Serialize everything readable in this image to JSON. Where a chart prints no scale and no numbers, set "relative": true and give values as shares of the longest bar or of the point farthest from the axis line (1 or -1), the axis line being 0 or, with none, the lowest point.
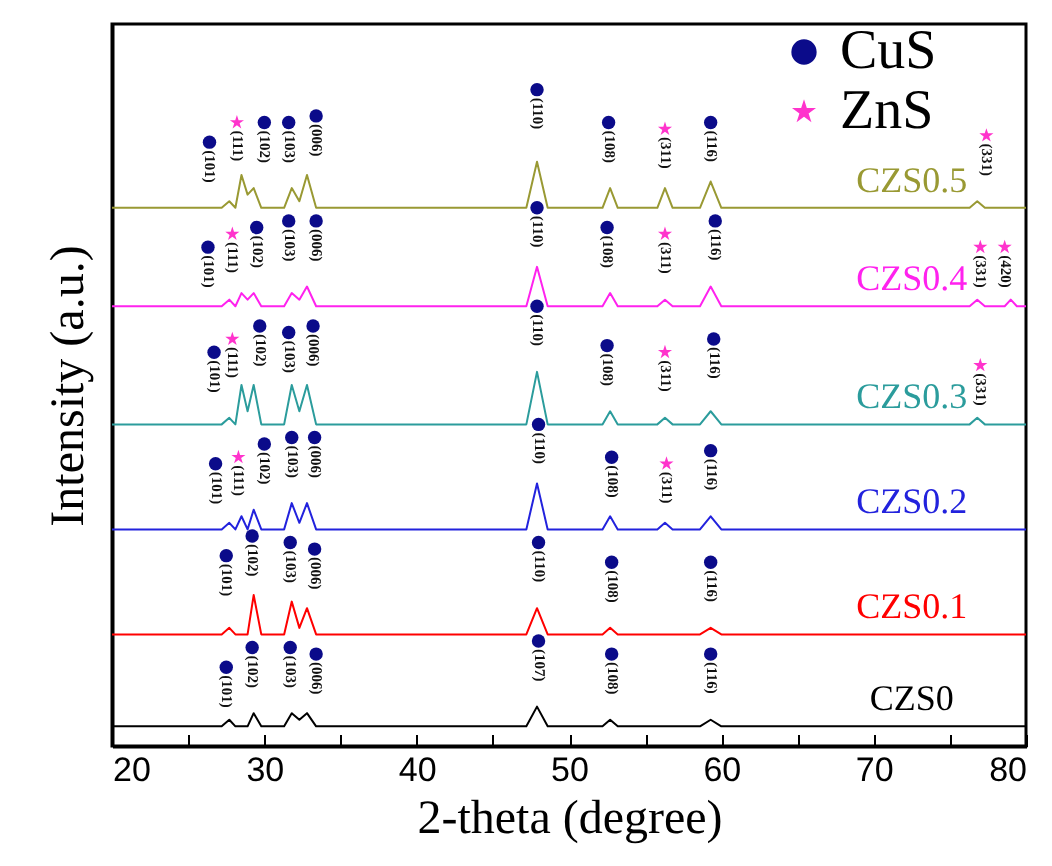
{
  "chart_data": {
    "type": "line",
    "xlabel": "2-theta (degree)",
    "ylabel": "Intensity (a.u.)",
    "relative": true,
    "xlim": [
      20,
      80
    ],
    "xticks": [
      20,
      {
        "value": 25,
        "label": null
      },
      30,
      {
        "value": 35,
        "label": null
      },
      40,
      {
        "value": 45,
        "label": null
      },
      50,
      {
        "value": 55,
        "label": null
      },
      60,
      {
        "value": 65,
        "label": null
      },
      70,
      {
        "value": 75,
        "label": null
      },
      80
    ],
    "grid": false,
    "legend": "top right",
    "x": [
      20,
      27.2,
      27.7,
      28.1,
      28.5,
      28.9,
      29.3,
      29.8,
      31.3,
      31.8,
      32.3,
      32.8,
      33.4,
      47.2,
      47.9,
      48.6,
      52.2,
      52.7,
      53.2,
      55.8,
      56.3,
      56.8,
      58.6,
      59.3,
      60.0,
      76.3,
      76.8,
      77.3,
      78.6,
      79.0,
      79.4,
      80
    ],
    "series": [
      {
        "name": "CZS0",
        "color": "#000000",
        "values": [
          0.03,
          0.03,
          0.04,
          0.03,
          0.03,
          0.03,
          0.05,
          0.03,
          0.03,
          0.05,
          0.04,
          0.05,
          0.03,
          0.03,
          0.06,
          0.03,
          0.03,
          0.04,
          0.03,
          0.03,
          0.03,
          0.03,
          0.03,
          0.04,
          0.03,
          0.03,
          0.03,
          0.03,
          0.03,
          0.03,
          0.03,
          0.03
        ]
      },
      {
        "name": "CZS0.1",
        "color": "#ff0000",
        "values": [
          0.17,
          0.17,
          0.18,
          0.17,
          0.17,
          0.17,
          0.23,
          0.17,
          0.17,
          0.22,
          0.18,
          0.21,
          0.17,
          0.17,
          0.21,
          0.17,
          0.17,
          0.18,
          0.17,
          0.17,
          0.17,
          0.17,
          0.17,
          0.18,
          0.17,
          0.17,
          0.17,
          0.17,
          0.17,
          0.17,
          0.17,
          0.17
        ]
      },
      {
        "name": "CZS0.2",
        "color": "#2222dd",
        "values": [
          0.33,
          0.33,
          0.34,
          0.33,
          0.35,
          0.33,
          0.36,
          0.33,
          0.33,
          0.37,
          0.34,
          0.37,
          0.33,
          0.33,
          0.4,
          0.33,
          0.33,
          0.35,
          0.33,
          0.33,
          0.34,
          0.33,
          0.33,
          0.35,
          0.33,
          0.33,
          0.33,
          0.33,
          0.33,
          0.33,
          0.33,
          0.33
        ]
      },
      {
        "name": "CZS0.3",
        "color": "#2b9c9c",
        "values": [
          0.49,
          0.49,
          0.5,
          0.49,
          0.55,
          0.51,
          0.55,
          0.49,
          0.49,
          0.55,
          0.51,
          0.55,
          0.49,
          0.49,
          0.57,
          0.49,
          0.49,
          0.51,
          0.49,
          0.49,
          0.5,
          0.49,
          0.49,
          0.51,
          0.49,
          0.49,
          0.5,
          0.49,
          0.49,
          0.49,
          0.49,
          0.49
        ]
      },
      {
        "name": "CZS0.4",
        "color": "#ff22ee",
        "values": [
          0.67,
          0.67,
          0.68,
          0.67,
          0.69,
          0.68,
          0.69,
          0.67,
          0.67,
          0.69,
          0.68,
          0.7,
          0.67,
          0.67,
          0.73,
          0.67,
          0.67,
          0.69,
          0.67,
          0.67,
          0.68,
          0.67,
          0.67,
          0.7,
          0.67,
          0.67,
          0.68,
          0.67,
          0.67,
          0.68,
          0.67,
          0.67
        ]
      },
      {
        "name": "CZS0.5",
        "color": "#999933",
        "values": [
          0.82,
          0.82,
          0.83,
          0.82,
          0.87,
          0.84,
          0.85,
          0.82,
          0.82,
          0.85,
          0.83,
          0.87,
          0.82,
          0.82,
          0.89,
          0.82,
          0.82,
          0.85,
          0.82,
          0.82,
          0.85,
          0.82,
          0.82,
          0.86,
          0.82,
          0.82,
          0.83,
          0.82,
          0.82,
          0.82,
          0.82,
          0.82
        ]
      },
      {
        "name": "CuS",
        "type": "scatter",
        "marker": "circle",
        "color": "#0b0b8a",
        "x": [
          26.4,
          30.0,
          31.6,
          33.4,
          47.9,
          52.6,
          59.3,
          26.3,
          29.5,
          31.6,
          33.4,
          47.9,
          52.5,
          59.6,
          26.7,
          29.7,
          31.6,
          33.2,
          47.9,
          52.5,
          59.5,
          26.8,
          30.0,
          31.8,
          33.3,
          48.0,
          52.8,
          59.3,
          27.5,
          29.2,
          31.7,
          33.3,
          48.0,
          52.8,
          59.3,
          27.5,
          29.2,
          31.7,
          33.4,
          48.0,
          52.8,
          59.3
        ],
        "values": [
          0.92,
          0.95,
          0.95,
          0.96,
          1.0,
          0.95,
          0.95,
          0.76,
          0.79,
          0.8,
          0.8,
          0.82,
          0.79,
          0.8,
          0.6,
          0.64,
          0.63,
          0.64,
          0.67,
          0.61,
          0.62,
          0.43,
          0.46,
          0.47,
          0.47,
          0.49,
          0.44,
          0.45,
          0.29,
          0.32,
          0.31,
          0.3,
          0.31,
          0.28,
          0.28,
          0.12,
          0.15,
          0.15,
          0.14,
          0.16,
          0.14,
          0.14
        ]
      },
      {
        "name": "ZnS",
        "type": "scatter",
        "marker": "star",
        "color": "#ff33cc",
        "x": [
          28.2,
          56.3,
          77.4,
          27.9,
          56.3,
          77.0,
          78.6,
          27.9,
          56.3,
          77.0,
          28.3,
          56.4
        ],
        "values": [
          0.95,
          0.94,
          0.93,
          0.78,
          0.78,
          0.76,
          0.76,
          0.62,
          0.6,
          0.58,
          0.44,
          0.43
        ]
      }
    ],
    "annotations": [
      {
        "text": "(101)",
        "x": 26.4,
        "y": 0.92
      },
      {
        "text": "(111)",
        "x": 28.2,
        "y": 0.95
      },
      {
        "text": "(102)",
        "x": 30.0,
        "y": 0.95
      },
      {
        "text": "(103)",
        "x": 31.6,
        "y": 0.95
      },
      {
        "text": "(006)",
        "x": 33.4,
        "y": 0.96
      },
      {
        "text": "(110)",
        "x": 47.9,
        "y": 1.0
      },
      {
        "text": "(108)",
        "x": 52.6,
        "y": 0.95
      },
      {
        "text": "(311)",
        "x": 56.3,
        "y": 0.94
      },
      {
        "text": "(116)",
        "x": 59.3,
        "y": 0.95
      },
      {
        "text": "(331)",
        "x": 77.4,
        "y": 0.93
      },
      {
        "text": "(101)",
        "x": 26.3,
        "y": 0.76
      },
      {
        "text": "(111)",
        "x": 27.9,
        "y": 0.78
      },
      {
        "text": "(102)",
        "x": 29.5,
        "y": 0.79
      },
      {
        "text": "(103)",
        "x": 31.6,
        "y": 0.8
      },
      {
        "text": "(006)",
        "x": 33.4,
        "y": 0.8
      },
      {
        "text": "(110)",
        "x": 47.9,
        "y": 0.82
      },
      {
        "text": "(108)",
        "x": 52.5,
        "y": 0.79
      },
      {
        "text": "(311)",
        "x": 56.3,
        "y": 0.78
      },
      {
        "text": "(116)",
        "x": 59.6,
        "y": 0.8
      },
      {
        "text": "(331)",
        "x": 77.0,
        "y": 0.76
      },
      {
        "text": "(420)",
        "x": 78.6,
        "y": 0.76
      },
      {
        "text": "(101)",
        "x": 26.7,
        "y": 0.6
      },
      {
        "text": "(111)",
        "x": 27.9,
        "y": 0.62
      },
      {
        "text": "(102)",
        "x": 29.7,
        "y": 0.64
      },
      {
        "text": "(103)",
        "x": 31.6,
        "y": 0.63
      },
      {
        "text": "(006)",
        "x": 33.2,
        "y": 0.64
      },
      {
        "text": "(110)",
        "x": 47.9,
        "y": 0.67
      },
      {
        "text": "(108)",
        "x": 52.5,
        "y": 0.61
      },
      {
        "text": "(311)",
        "x": 56.3,
        "y": 0.6
      },
      {
        "text": "(116)",
        "x": 59.5,
        "y": 0.62
      },
      {
        "text": "(331)",
        "x": 77.0,
        "y": 0.58
      },
      {
        "text": "(101)",
        "x": 26.8,
        "y": 0.43
      },
      {
        "text": "(111)",
        "x": 28.3,
        "y": 0.44
      },
      {
        "text": "(102)",
        "x": 30.0,
        "y": 0.46
      },
      {
        "text": "(103)",
        "x": 31.8,
        "y": 0.47
      },
      {
        "text": "(006)",
        "x": 33.3,
        "y": 0.47
      },
      {
        "text": "(110)",
        "x": 48.0,
        "y": 0.49
      },
      {
        "text": "(108)",
        "x": 52.8,
        "y": 0.44
      },
      {
        "text": "(311)",
        "x": 56.4,
        "y": 0.43
      },
      {
        "text": "(116)",
        "x": 59.3,
        "y": 0.45
      },
      {
        "text": "(101)",
        "x": 27.5,
        "y": 0.29
      },
      {
        "text": "(102)",
        "x": 29.2,
        "y": 0.32
      },
      {
        "text": "(103)",
        "x": 31.7,
        "y": 0.31
      },
      {
        "text": "(006)",
        "x": 33.3,
        "y": 0.3
      },
      {
        "text": "(110)",
        "x": 48.0,
        "y": 0.31
      },
      {
        "text": "(108)",
        "x": 52.8,
        "y": 0.28
      },
      {
        "text": "(116)",
        "x": 59.3,
        "y": 0.28
      },
      {
        "text": "(101)",
        "x": 27.5,
        "y": 0.12
      },
      {
        "text": "(102)",
        "x": 29.2,
        "y": 0.15
      },
      {
        "text": "(103)",
        "x": 31.7,
        "y": 0.15
      },
      {
        "text": "(006)",
        "x": 33.4,
        "y": 0.14
      },
      {
        "text": "(107)",
        "x": 48.0,
        "y": 0.16
      },
      {
        "text": "(108)",
        "x": 52.8,
        "y": 0.14
      },
      {
        "text": "(116)",
        "x": 59.3,
        "y": 0.14
      }
    ]
  }
}
